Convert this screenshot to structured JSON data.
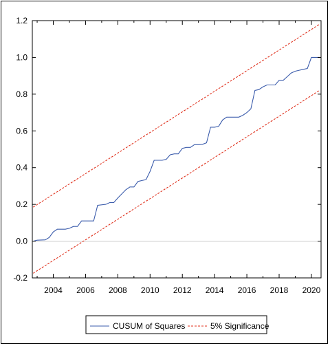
{
  "chart_data": {
    "type": "line",
    "xlim": [
      2002.7,
      2020.6
    ],
    "ylim": [
      -0.2,
      1.2
    ],
    "y_ticks": [
      -0.2,
      0.0,
      0.2,
      0.4,
      0.6,
      0.8,
      1.0,
      1.2
    ],
    "y_tick_labels": [
      "-0.2",
      "0.0",
      "0.2",
      "0.4",
      "0.6",
      "0.8",
      "1.0",
      "1.2"
    ],
    "x_ticks": [
      2004,
      2006,
      2008,
      2010,
      2012,
      2014,
      2016,
      2018,
      2020
    ],
    "x_tick_labels": [
      "2004",
      "2006",
      "2008",
      "2010",
      "2012",
      "2014",
      "2016",
      "2018",
      "2020"
    ],
    "zero_line": true,
    "legend_position": "bottom",
    "colors": {
      "cusum": "#3a5bab",
      "bounds": "#e0321e",
      "zero": "#c8c8c8"
    },
    "series": [
      {
        "name": "CUSUM of Squares",
        "style": "solid",
        "x": [
          2002.75,
          2003.0,
          2003.5,
          2003.75,
          2004.0,
          2004.25,
          2004.75,
          2005.0,
          2005.25,
          2005.5,
          2005.75,
          2006.5,
          2006.75,
          2007.25,
          2007.5,
          2007.75,
          2008.0,
          2008.5,
          2008.75,
          2009.0,
          2009.25,
          2009.5,
          2009.75,
          2010.0,
          2010.25,
          2010.5,
          2010.75,
          2011.0,
          2011.25,
          2011.5,
          2011.75,
          2012.0,
          2012.25,
          2012.5,
          2012.75,
          2013.0,
          2013.25,
          2013.5,
          2013.75,
          2014.0,
          2014.25,
          2014.5,
          2014.75,
          2015.0,
          2015.5,
          2015.75,
          2016.0,
          2016.25,
          2016.5,
          2016.75,
          2017.0,
          2017.25,
          2017.5,
          2017.75,
          2018.0,
          2018.25,
          2018.5,
          2018.75,
          2019.0,
          2019.25,
          2019.5,
          2019.75,
          2020.0,
          2020.25,
          2020.5
        ],
        "values": [
          0.0,
          0.005,
          0.007,
          0.02,
          0.05,
          0.065,
          0.065,
          0.07,
          0.08,
          0.08,
          0.11,
          0.11,
          0.195,
          0.2,
          0.21,
          0.21,
          0.235,
          0.28,
          0.295,
          0.295,
          0.325,
          0.33,
          0.335,
          0.38,
          0.44,
          0.44,
          0.44,
          0.445,
          0.47,
          0.475,
          0.475,
          0.505,
          0.51,
          0.51,
          0.525,
          0.525,
          0.527,
          0.535,
          0.62,
          0.62,
          0.625,
          0.66,
          0.675,
          0.675,
          0.675,
          0.685,
          0.7,
          0.72,
          0.82,
          0.825,
          0.84,
          0.85,
          0.85,
          0.85,
          0.875,
          0.875,
          0.895,
          0.915,
          0.925,
          0.93,
          0.935,
          0.94,
          1.0,
          1.0,
          1.0
        ]
      },
      {
        "name": "5% Significance",
        "style": "dashed",
        "x": [
          2002.75,
          2020.5
        ],
        "values": [
          0.185,
          1.18
        ]
      },
      {
        "style": "dashed",
        "x": [
          2002.75,
          2020.5
        ],
        "values": [
          -0.175,
          0.82
        ]
      }
    ]
  }
}
